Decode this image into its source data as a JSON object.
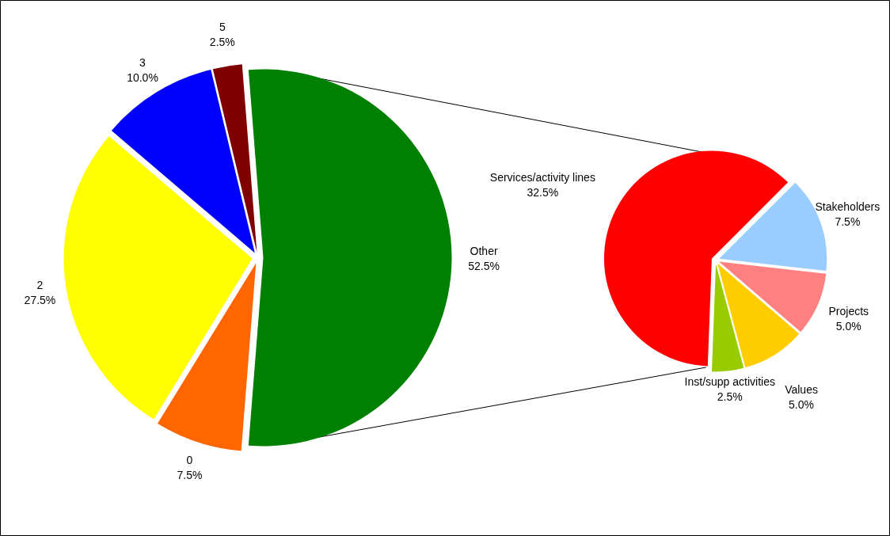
{
  "chart_data": [
    {
      "type": "pie",
      "categories": [
        "0",
        "2",
        "3",
        "5",
        "Other"
      ],
      "values": [
        7.5,
        27.5,
        10.0,
        2.5,
        52.5
      ],
      "colors": [
        "#ff6600",
        "#ffff00",
        "#0000ff",
        "#800000",
        "#008000"
      ],
      "value_labels": [
        "7.5%",
        "27.5%",
        "10.0%",
        "2.5%",
        "52.5%"
      ]
    },
    {
      "type": "pie",
      "categories": [
        "Services/activity lines",
        "Stakeholders",
        "Projects",
        "Values",
        "Inst/supp activities"
      ],
      "values": [
        32.5,
        7.5,
        5.0,
        5.0,
        2.5
      ],
      "colors": [
        "#ff0000",
        "#99ccff",
        "#ff8080",
        "#ffcc00",
        "#99cc00"
      ],
      "value_labels": [
        "32.5%",
        "7.5%",
        "5.0%",
        "5.0%",
        "2.5%"
      ]
    }
  ]
}
